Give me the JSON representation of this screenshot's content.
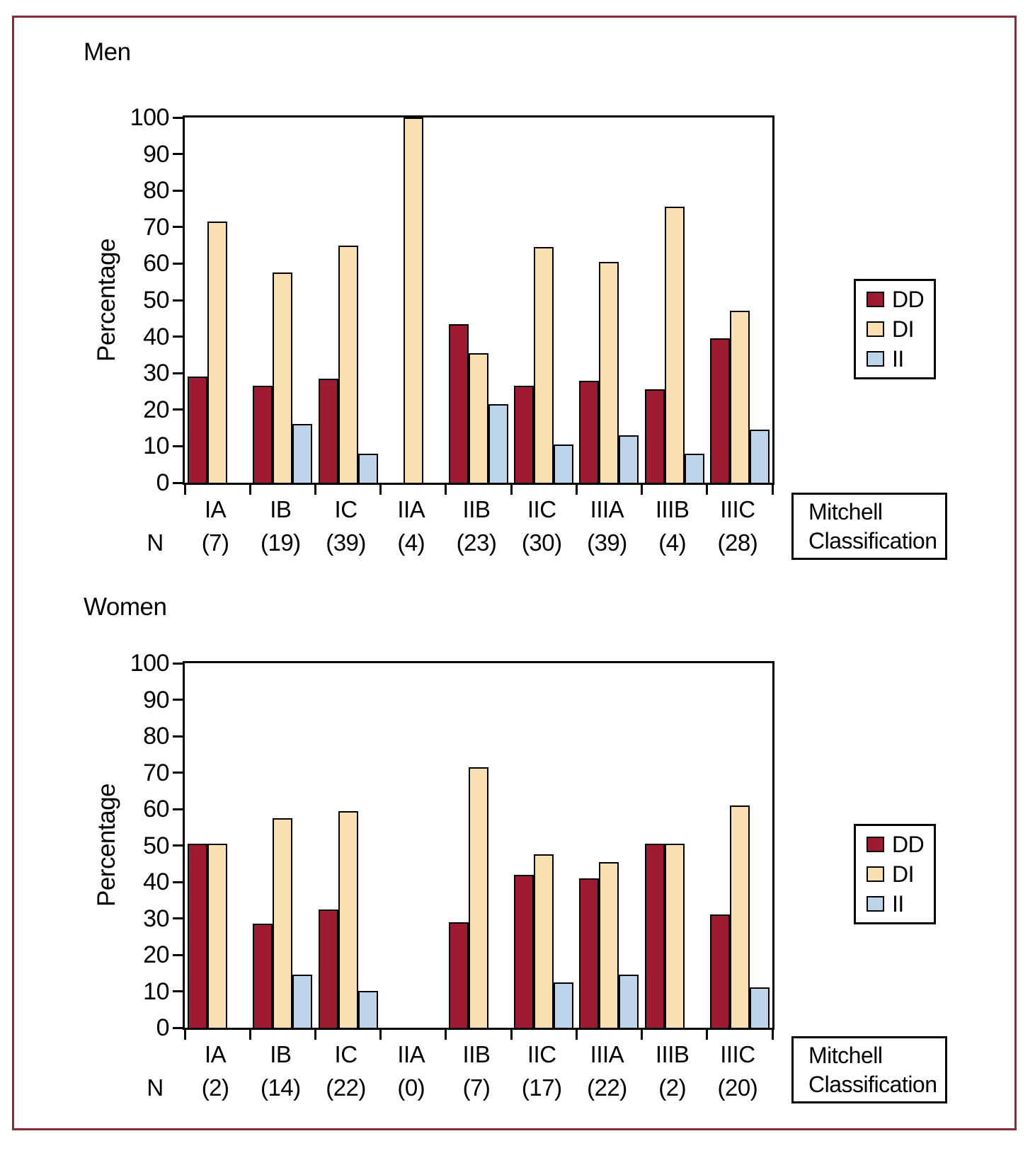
{
  "figure": {
    "background": "#ffffff",
    "border_color": "#8B2939",
    "axis_color": "#000000",
    "text_color": "#000000"
  },
  "chart_data": [
    {
      "type": "bar",
      "title": "Men",
      "ylabel": "Percentage",
      "xlabel_lines": [
        "Mitchell",
        "Classification"
      ],
      "n_prefix": "N",
      "ylim": [
        0,
        100
      ],
      "yticks": [
        0,
        10,
        20,
        30,
        40,
        50,
        60,
        70,
        80,
        90,
        100
      ],
      "grid": false,
      "legend_position": "right",
      "categories": [
        "IA",
        "IB",
        "IC",
        "IIA",
        "IIB",
        "IIC",
        "IIIA",
        "IIIB",
        "IIIC"
      ],
      "counts": [
        "(7)",
        "(19)",
        "(39)",
        "(4)",
        "(23)",
        "(30)",
        "(39)",
        "(4)",
        "(28)"
      ],
      "series": [
        {
          "name": "DD",
          "color": "#9C1B33",
          "values": [
            29,
            26.5,
            28.5,
            0,
            43.5,
            26.5,
            28,
            25.5,
            39.5
          ]
        },
        {
          "name": "DI",
          "color": "#FADFB2",
          "values": [
            71.5,
            57.5,
            65,
            100,
            35.5,
            64.5,
            60.5,
            75.5,
            47
          ]
        },
        {
          "name": "II",
          "color": "#BDD4EA",
          "values": [
            0,
            16,
            8,
            0,
            21.5,
            10.5,
            13,
            8,
            14.5
          ]
        }
      ]
    },
    {
      "type": "bar",
      "title": "Women",
      "ylabel": "Percentage",
      "xlabel_lines": [
        "Mitchell",
        "Classification"
      ],
      "n_prefix": "N",
      "ylim": [
        0,
        100
      ],
      "yticks": [
        0,
        10,
        20,
        30,
        40,
        50,
        60,
        70,
        80,
        90,
        100
      ],
      "grid": false,
      "legend_position": "right",
      "categories": [
        "IA",
        "IB",
        "IC",
        "IIA",
        "IIB",
        "IIC",
        "IIIA",
        "IIIB",
        "IIIC"
      ],
      "counts": [
        "(2)",
        "(14)",
        "(22)",
        "(0)",
        "(7)",
        "(17)",
        "(22)",
        "(2)",
        "(20)"
      ],
      "series": [
        {
          "name": "DD",
          "color": "#9C1B33",
          "values": [
            50.5,
            28.5,
            32.5,
            0,
            29,
            42,
            41,
            50.5,
            31
          ]
        },
        {
          "name": "DI",
          "color": "#FADFB2",
          "values": [
            50.5,
            57.5,
            59.5,
            0,
            71.5,
            47.5,
            45.5,
            50.5,
            61
          ]
        },
        {
          "name": "II",
          "color": "#BDD4EA",
          "values": [
            0,
            14.5,
            10,
            0,
            0,
            12.5,
            14.5,
            0,
            11
          ]
        }
      ]
    }
  ]
}
